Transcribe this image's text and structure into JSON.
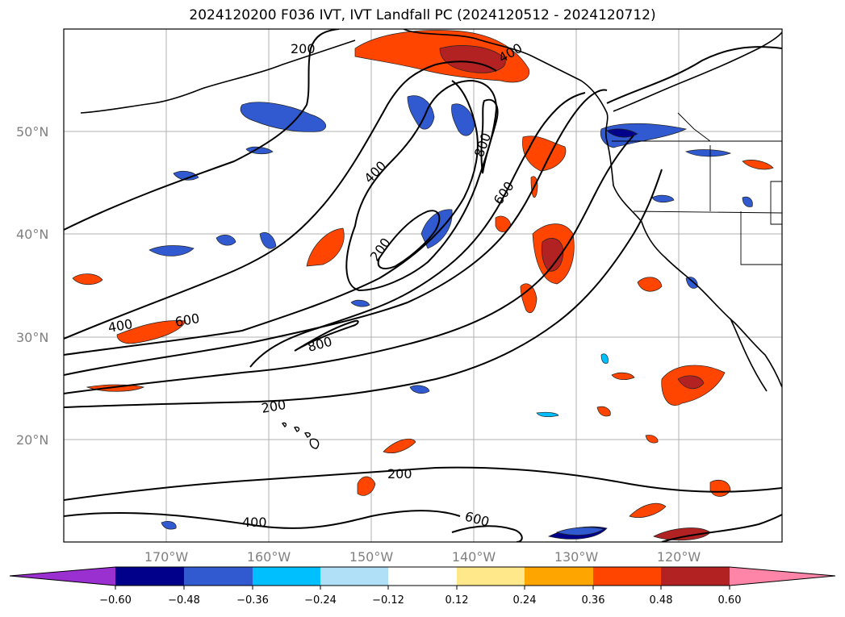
{
  "title": "2024120200 F036 IVT, IVT Landfall PC (2024120512 - 2024120712)",
  "map": {
    "lon_range": [
      -180,
      -110
    ],
    "lat_range": [
      10,
      60
    ],
    "gridlines": true,
    "lat_ticks": [
      "50°N",
      "40°N",
      "30°N",
      "20°N"
    ],
    "lon_ticks": [
      "170°W",
      "160°W",
      "150°W",
      "140°W",
      "130°W",
      "120°W"
    ]
  },
  "contour_labels": [
    "200",
    "400",
    "800",
    "600",
    "400",
    "200",
    "400",
    "600",
    "800",
    "200",
    "200",
    "400",
    "600"
  ],
  "colorbar": {
    "orientation": "horizontal",
    "extend": "both",
    "ticks": [
      "−0.60",
      "−0.48",
      "−0.36",
      "−0.24",
      "−0.12",
      "0.12",
      "0.24",
      "0.36",
      "0.48",
      "0.60"
    ],
    "colors": {
      "under": "#9b30d0",
      "b1": "#00008b",
      "b2": "#3159d0",
      "b3": "#00bfff",
      "b4": "#b0e0f8",
      "b5": "#ffffff",
      "b6": "#ffe88a",
      "b7": "#ffa500",
      "b8": "#ff4500",
      "b9": "#b22222",
      "over": "#ff85a8"
    }
  }
}
